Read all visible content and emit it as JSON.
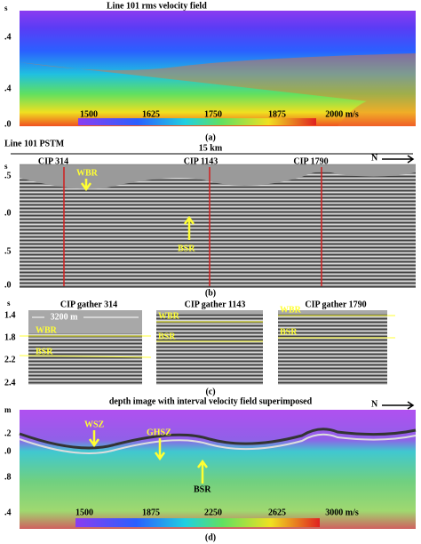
{
  "panels": [
    {
      "title": "Line 101 rms velocity field",
      "y_labels": [
        "s",
        ".4",
        ".4",
        ".0"
      ],
      "colorbar": [
        "1500",
        "1625",
        "1750",
        "1875",
        "2000 m/s"
      ],
      "caption": "(a)"
    },
    {
      "title": "Line 101 PSTM",
      "scale": "15 km",
      "north": "N",
      "cips": [
        "CIP 314",
        "CIP 1143",
        "CIP 1790"
      ],
      "y_labels": [
        "s",
        ".5",
        ".0",
        ".5",
        ".0"
      ],
      "annotations": [
        "WBR",
        "BSR"
      ],
      "caption": "(b)"
    },
    {
      "gathers": [
        "CIP gather 314",
        "CIP gather 1143",
        "CIP gather 1790"
      ],
      "scale": "3200 m",
      "y_labels": [
        "s",
        "1.4",
        "1.8",
        "2.2",
        "2.4"
      ],
      "annotations": [
        "WBR",
        "BSR",
        "WBR",
        "BSR",
        "WBR",
        "BSR"
      ],
      "caption": "(c)"
    },
    {
      "title": "depth image with interval velocity field superimposed",
      "north": "N",
      "y_labels": [
        "m",
        ".2",
        ".0",
        ".8",
        ".4"
      ],
      "annotations": [
        "WSZ",
        "GHSZ",
        "BSR"
      ],
      "colorbar": [
        "1500",
        "1875",
        "2250",
        "2625",
        "3000 m/s"
      ],
      "caption": "(d)"
    }
  ]
}
